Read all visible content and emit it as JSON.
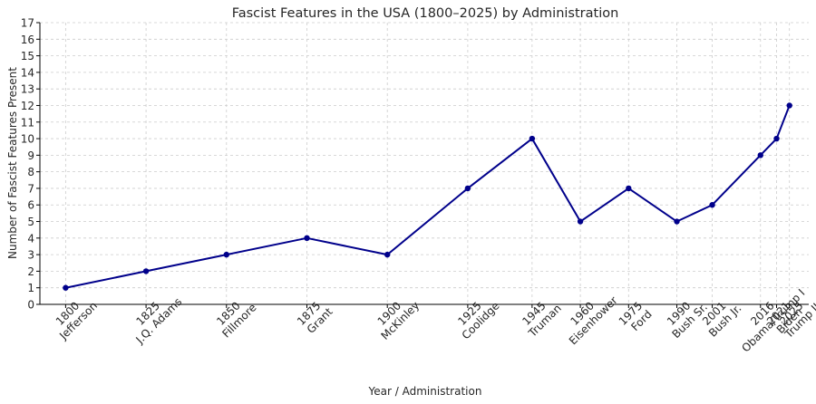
{
  "chart_data": {
    "type": "line",
    "title": "Fascist Features in the USA (1800–2025) by Administration",
    "xlabel": "Year / Administration",
    "ylabel": "Number of Fascist Features Present",
    "ylim": [
      0,
      17
    ],
    "xlim": [
      1792,
      2031
    ],
    "yticks": [
      0,
      1,
      2,
      3,
      4,
      5,
      6,
      7,
      8,
      9,
      10,
      11,
      12,
      13,
      14,
      15,
      16,
      17
    ],
    "grid": true,
    "color": "#00008b",
    "series": [
      {
        "x": [
          1800,
          1825,
          1850,
          1875,
          1900,
          1925,
          1945,
          1960,
          1975,
          1990,
          2001,
          2016,
          2021,
          2025
        ],
        "values": [
          1,
          2,
          3,
          4,
          3,
          7,
          10,
          5,
          7,
          5,
          6,
          9,
          10,
          12
        ],
        "labels": [
          [
            "1800",
            "Jefferson"
          ],
          [
            "1825",
            "J.Q. Adams"
          ],
          [
            "1850",
            "Fillmore"
          ],
          [
            "1875",
            "Grant"
          ],
          [
            "1900",
            "McKinley"
          ],
          [
            "1925",
            "Coolidge"
          ],
          [
            "1945",
            "Truman"
          ],
          [
            "1960",
            "Eisenhower"
          ],
          [
            "1975",
            "Ford"
          ],
          [
            "1990",
            "Bush Sr."
          ],
          [
            "2001",
            "Bush Jr."
          ],
          [
            "2016",
            "Obama/Trump I"
          ],
          [
            "2021",
            "Biden"
          ],
          [
            "2025",
            "Trump II"
          ]
        ]
      }
    ]
  }
}
